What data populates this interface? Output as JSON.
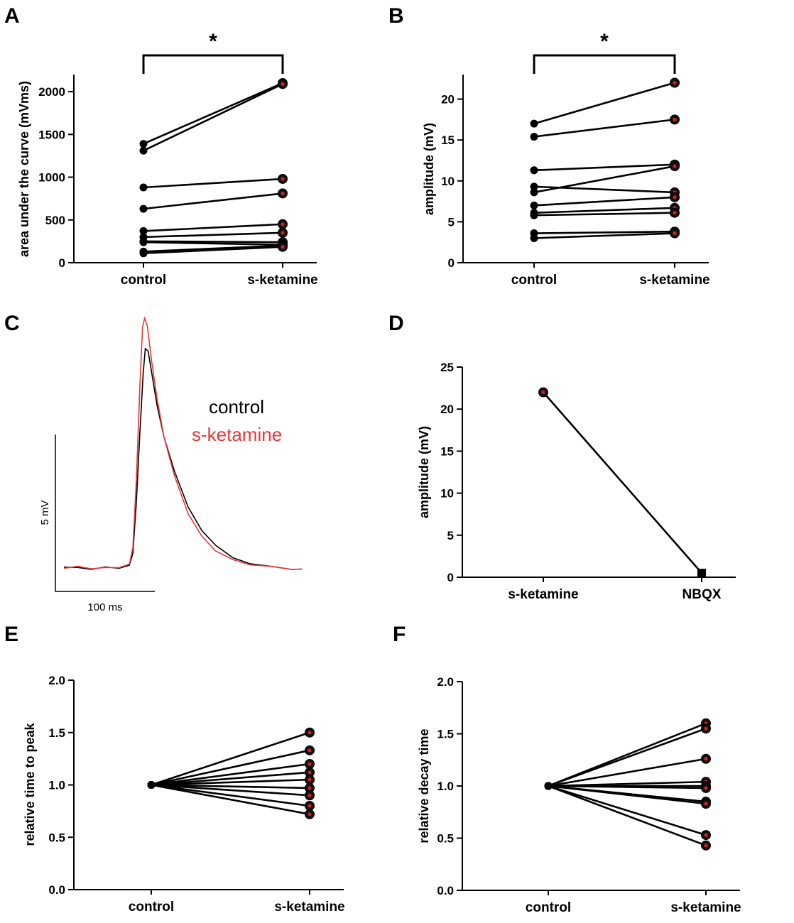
{
  "figure": {
    "panels": {
      "A": "A",
      "B": "B",
      "C": "C",
      "D": "D",
      "E": "E",
      "F": "F"
    }
  },
  "colors": {
    "control": "#000000",
    "s_ketamine": "#e23a3a",
    "marker_fill": "#111111",
    "marker_dot": "#d42020"
  },
  "chart_data": [
    {
      "id": "A",
      "type": "scatter",
      "title": "",
      "xlabel": "",
      "ylabel": "area under the curve (mVms)",
      "categories": [
        "control",
        "s-ketamine"
      ],
      "ylim": [
        0,
        2200
      ],
      "yticks": [
        0,
        500,
        1000,
        1500,
        2000
      ],
      "significance": "*",
      "pairs": [
        [
          1390,
          2100
        ],
        [
          1310,
          2090
        ],
        [
          880,
          980
        ],
        [
          630,
          810
        ],
        [
          370,
          450
        ],
        [
          300,
          350
        ],
        [
          250,
          240
        ],
        [
          240,
          210
        ],
        [
          130,
          200
        ],
        [
          110,
          185
        ]
      ]
    },
    {
      "id": "B",
      "type": "scatter",
      "title": "",
      "xlabel": "",
      "ylabel": "amplitude (mV)",
      "categories": [
        "control",
        "s-ketamine"
      ],
      "ylim": [
        0,
        23
      ],
      "yticks": [
        0,
        5,
        10,
        15,
        20
      ],
      "significance": "*",
      "pairs": [
        [
          17.0,
          22.0
        ],
        [
          15.4,
          17.5
        ],
        [
          11.3,
          12.0
        ],
        [
          8.6,
          11.8
        ],
        [
          9.3,
          8.6
        ],
        [
          7.0,
          8.0
        ],
        [
          6.1,
          6.7
        ],
        [
          5.8,
          6.1
        ],
        [
          3.6,
          3.8
        ],
        [
          3.0,
          3.6
        ]
      ]
    },
    {
      "id": "C",
      "type": "line",
      "title": "",
      "legend": [
        "control",
        "s-ketamine"
      ],
      "scale_bar": {
        "y_label": "5 mV",
        "x_label": "100 ms"
      },
      "series": [
        {
          "name": "control",
          "points": [
            [
              0,
              0.3
            ],
            [
              20,
              0.2
            ],
            [
              40,
              0.1
            ],
            [
              60,
              0.25
            ],
            [
              80,
              0.2
            ],
            [
              95,
              0.4
            ],
            [
              100,
              1.5
            ],
            [
              105,
              6
            ],
            [
              110,
              12
            ],
            [
              115,
              17.5
            ],
            [
              118,
              19.6
            ],
            [
              122,
              19.4
            ],
            [
              128,
              17.2
            ],
            [
              135,
              14.6
            ],
            [
              145,
              11.8
            ],
            [
              160,
              8.8
            ],
            [
              180,
              5.6
            ],
            [
              200,
              3.5
            ],
            [
              220,
              2.2
            ],
            [
              245,
              1.1
            ],
            [
              270,
              0.6
            ],
            [
              300,
              0.3
            ],
            [
              330,
              0.1
            ],
            [
              345,
              0.05
            ]
          ]
        },
        {
          "name": "s-ketamine",
          "points": [
            [
              0,
              0.2
            ],
            [
              20,
              0.3
            ],
            [
              40,
              0.15
            ],
            [
              60,
              0.2
            ],
            [
              80,
              0.25
            ],
            [
              95,
              0.5
            ],
            [
              100,
              2
            ],
            [
              105,
              8
            ],
            [
              110,
              16
            ],
            [
              114,
              21.5
            ],
            [
              117,
              22.3
            ],
            [
              121,
              21.6
            ],
            [
              127,
              18.6
            ],
            [
              135,
              15.2
            ],
            [
              145,
              11.8
            ],
            [
              160,
              8.4
            ],
            [
              180,
              5.0
            ],
            [
              200,
              3.0
            ],
            [
              220,
              1.7
            ],
            [
              245,
              0.9
            ],
            [
              270,
              0.5
            ],
            [
              300,
              0.3
            ],
            [
              330,
              0.1
            ],
            [
              345,
              0.05
            ]
          ]
        }
      ]
    },
    {
      "id": "D",
      "type": "scatter",
      "title": "",
      "xlabel": "",
      "ylabel": "amplitude (mV)",
      "categories": [
        "s-ketamine",
        "NBQX"
      ],
      "ylim": [
        0,
        25
      ],
      "yticks": [
        0,
        5,
        10,
        15,
        20,
        25
      ],
      "pairs": [
        [
          22.0,
          0.5
        ]
      ]
    },
    {
      "id": "E",
      "type": "scatter",
      "title": "",
      "xlabel": "",
      "ylabel": "relative time to peak",
      "categories": [
        "control",
        "s-ketamine"
      ],
      "ylim": [
        0,
        2.0
      ],
      "yticks": [
        "0.0",
        "0.5",
        "1.0",
        "1.5",
        "2.0"
      ],
      "pairs": [
        [
          1.0,
          1.5
        ],
        [
          1.0,
          1.33
        ],
        [
          1.0,
          1.2
        ],
        [
          1.0,
          1.12
        ],
        [
          1.0,
          1.05
        ],
        [
          1.0,
          0.97
        ],
        [
          1.0,
          0.9
        ],
        [
          1.0,
          0.8
        ],
        [
          1.0,
          0.72
        ]
      ]
    },
    {
      "id": "F",
      "type": "scatter",
      "title": "",
      "xlabel": "",
      "ylabel": "relative decay time",
      "categories": [
        "control",
        "s-ketamine"
      ],
      "ylim": [
        0,
        2.0
      ],
      "yticks": [
        "0.0",
        "0.5",
        "1.0",
        "1.5",
        "2.0"
      ],
      "pairs": [
        [
          1.0,
          1.6
        ],
        [
          1.0,
          1.55
        ],
        [
          1.0,
          1.26
        ],
        [
          1.0,
          1.04
        ],
        [
          1.0,
          1.0
        ],
        [
          1.0,
          0.98
        ],
        [
          1.0,
          0.85
        ],
        [
          1.0,
          0.83
        ],
        [
          1.0,
          0.53
        ],
        [
          1.0,
          0.43
        ]
      ]
    }
  ]
}
